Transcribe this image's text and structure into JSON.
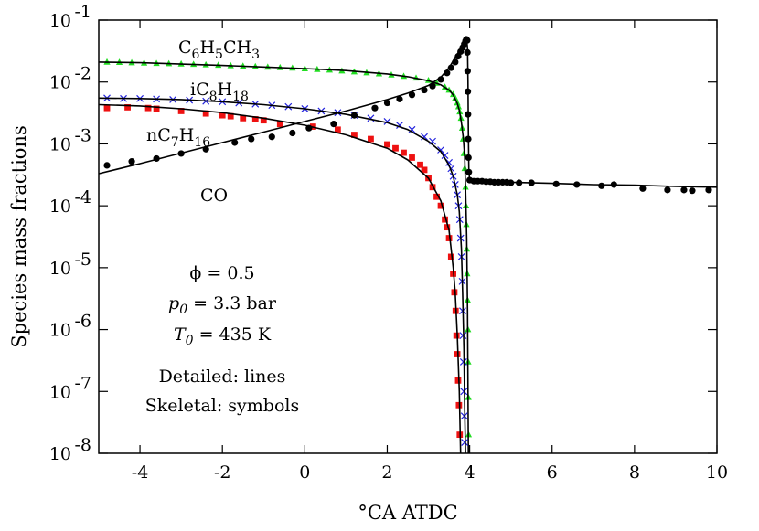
{
  "chart_data": {
    "type": "line",
    "xlabel": "°CA ATDC",
    "ylabel": "Species mass fractions",
    "xlim": [
      -5,
      10
    ],
    "ylim": [
      1e-08,
      0.1
    ],
    "y_scale": "log",
    "x_ticks": [
      "-4",
      "-2",
      "0",
      "2",
      "4",
      "6",
      "8",
      "10"
    ],
    "x_tick_values": [
      -4,
      -2,
      0,
      2,
      4,
      6,
      8,
      10
    ],
    "y_ticks": [
      {
        "value": 1e-08,
        "base": "10",
        "exp": "-8"
      },
      {
        "value": 1e-07,
        "base": "10",
        "exp": "-7"
      },
      {
        "value": 1e-06,
        "base": "10",
        "exp": "-6"
      },
      {
        "value": 1e-05,
        "base": "10",
        "exp": "-5"
      },
      {
        "value": 0.0001,
        "base": "10",
        "exp": "-4"
      },
      {
        "value": 0.001,
        "base": "10",
        "exp": "-3"
      },
      {
        "value": 0.01,
        "base": "10",
        "exp": "-2"
      },
      {
        "value": 0.1,
        "base": "10",
        "exp": "-1"
      }
    ],
    "grid": false,
    "series_labels": {
      "toluene": {
        "parts": [
          [
            "C",
            ""
          ],
          [
            "6",
            "sub"
          ],
          [
            "H",
            ""
          ],
          [
            "5",
            "sub"
          ],
          [
            "CH",
            ""
          ],
          [
            "3",
            "sub"
          ]
        ]
      },
      "isooctane": {
        "parts": [
          [
            "iC",
            ""
          ],
          [
            "8",
            "sub"
          ],
          [
            "H",
            ""
          ],
          [
            "18",
            "sub"
          ]
        ]
      },
      "heptane": {
        "parts": [
          [
            "nC",
            ""
          ],
          [
            "7",
            "sub"
          ],
          [
            "H",
            ""
          ],
          [
            "16",
            "sub"
          ]
        ]
      },
      "co": {
        "parts": [
          [
            "CO",
            ""
          ]
        ]
      }
    },
    "annotations": {
      "phi": "ϕ = 0.5",
      "p0_sym": "p",
      "p0_sub": "0",
      "p0_rest": " = 3.3 bar",
      "T0_sym": "T",
      "T0_sub": "0",
      "T0_rest": " = 435 K",
      "detailed": "Detailed: lines",
      "skeletal": "Skeletal: symbols"
    },
    "series": [
      {
        "key": "toluene",
        "color": "#000000",
        "marker_color": "#22dd22",
        "marker": "triangle",
        "line": [
          [
            -5,
            0.021
          ],
          [
            -4,
            0.0205
          ],
          [
            -3,
            0.0195
          ],
          [
            -2,
            0.0185
          ],
          [
            -1,
            0.0175
          ],
          [
            0,
            0.0165
          ],
          [
            1,
            0.0153
          ],
          [
            2,
            0.0135
          ],
          [
            2.5,
            0.0122
          ],
          [
            3,
            0.0105
          ],
          [
            3.3,
            0.009
          ],
          [
            3.5,
            0.0074
          ],
          [
            3.6,
            0.0062
          ],
          [
            3.7,
            0.0045
          ],
          [
            3.75,
            0.0035
          ],
          [
            3.8,
            0.0022
          ],
          [
            3.85,
            0.0012
          ],
          [
            3.88,
            0.0006
          ],
          [
            3.9,
            0.0002
          ],
          [
            3.93,
            3e-05
          ],
          [
            3.95,
            2e-06
          ],
          [
            3.97,
            1e-08
          ]
        ],
        "markers": [
          [
            -4.8,
            0.021
          ],
          [
            -4.5,
            0.0208
          ],
          [
            -4.2,
            0.0205
          ],
          [
            -3.9,
            0.0203
          ],
          [
            -3.6,
            0.02
          ],
          [
            -3.3,
            0.0198
          ],
          [
            -3.0,
            0.0196
          ],
          [
            -2.7,
            0.0193
          ],
          [
            -2.4,
            0.019
          ],
          [
            -2.1,
            0.0187
          ],
          [
            -1.8,
            0.0184
          ],
          [
            -1.5,
            0.0181
          ],
          [
            -1.2,
            0.0178
          ],
          [
            -0.9,
            0.0174
          ],
          [
            -0.6,
            0.0171
          ],
          [
            -0.3,
            0.0168
          ],
          [
            0,
            0.0164
          ],
          [
            0.3,
            0.016
          ],
          [
            0.6,
            0.0156
          ],
          [
            0.9,
            0.0151
          ],
          [
            1.2,
            0.0146
          ],
          [
            1.5,
            0.0141
          ],
          [
            1.8,
            0.0136
          ],
          [
            2.1,
            0.013
          ],
          [
            2.4,
            0.0124
          ],
          [
            2.7,
            0.0116
          ],
          [
            3.0,
            0.0106
          ],
          [
            3.2,
            0.0096
          ],
          [
            3.4,
            0.0083
          ],
          [
            3.5,
            0.0074
          ],
          [
            3.6,
            0.0063
          ],
          [
            3.65,
            0.0055
          ],
          [
            3.7,
            0.0046
          ],
          [
            3.73,
            0.004
          ],
          [
            3.76,
            0.0033
          ],
          [
            3.79,
            0.0026
          ],
          [
            3.82,
            0.0018
          ],
          [
            3.84,
            0.0012
          ],
          [
            3.86,
            0.0007
          ],
          [
            3.88,
            0.0004
          ],
          [
            3.9,
            0.0002
          ],
          [
            3.91,
            0.0001
          ],
          [
            3.92,
            5e-05
          ],
          [
            3.93,
            2e-05
          ],
          [
            3.94,
            8e-06
          ],
          [
            3.95,
            3e-06
          ],
          [
            3.96,
            1e-06
          ],
          [
            3.965,
            3e-07
          ],
          [
            3.97,
            8e-08
          ],
          [
            3.975,
            2e-08
          ]
        ]
      },
      {
        "key": "isooctane",
        "color": "#000000",
        "marker_color": "#2222dd",
        "marker": "cross",
        "line": [
          [
            -5,
            0.0055
          ],
          [
            -4,
            0.0054
          ],
          [
            -3,
            0.0052
          ],
          [
            -2,
            0.0048
          ],
          [
            -1,
            0.0043
          ],
          [
            0,
            0.0037
          ],
          [
            1,
            0.003
          ],
          [
            2,
            0.0022
          ],
          [
            2.5,
            0.0017
          ],
          [
            3,
            0.0011
          ],
          [
            3.3,
            0.00075
          ],
          [
            3.5,
            0.00045
          ],
          [
            3.6,
            0.0003
          ],
          [
            3.7,
            0.00015
          ],
          [
            3.75,
            8e-05
          ],
          [
            3.8,
            2e-05
          ],
          [
            3.83,
            4e-06
          ],
          [
            3.86,
            5e-07
          ],
          [
            3.88,
            5e-08
          ],
          [
            3.9,
            1e-08
          ]
        ],
        "markers": [
          [
            -4.8,
            0.0055
          ],
          [
            -4.4,
            0.0054
          ],
          [
            -4.0,
            0.0054
          ],
          [
            -3.6,
            0.0053
          ],
          [
            -3.2,
            0.0052
          ],
          [
            -2.8,
            0.0051
          ],
          [
            -2.4,
            0.0049
          ],
          [
            -2.0,
            0.0048
          ],
          [
            -1.6,
            0.0046
          ],
          [
            -1.2,
            0.0044
          ],
          [
            -0.8,
            0.0042
          ],
          [
            -0.4,
            0.004
          ],
          [
            0,
            0.0037
          ],
          [
            0.4,
            0.0034
          ],
          [
            0.8,
            0.0032
          ],
          [
            1.2,
            0.0029
          ],
          [
            1.6,
            0.0026
          ],
          [
            2.0,
            0.0023
          ],
          [
            2.3,
            0.002
          ],
          [
            2.6,
            0.0017
          ],
          [
            2.9,
            0.0013
          ],
          [
            3.1,
            0.0011
          ],
          [
            3.3,
            0.0008
          ],
          [
            3.4,
            0.00065
          ],
          [
            3.5,
            0.0005
          ],
          [
            3.55,
            0.0004
          ],
          [
            3.6,
            0.0003
          ],
          [
            3.65,
            0.00022
          ],
          [
            3.7,
            0.00015
          ],
          [
            3.73,
            0.0001
          ],
          [
            3.76,
            6e-05
          ],
          [
            3.78,
            3e-05
          ],
          [
            3.8,
            1.5e-05
          ],
          [
            3.82,
            6e-06
          ],
          [
            3.83,
            2e-06
          ],
          [
            3.84,
            8e-07
          ],
          [
            3.85,
            3e-07
          ],
          [
            3.86,
            1e-07
          ],
          [
            3.87,
            4e-08
          ],
          [
            3.88,
            1.5e-08
          ]
        ]
      },
      {
        "key": "heptane",
        "color": "#000000",
        "marker_color": "#ee1111",
        "marker": "square",
        "line": [
          [
            -5,
            0.0043
          ],
          [
            -4,
            0.0041
          ],
          [
            -3,
            0.0037
          ],
          [
            -2,
            0.0032
          ],
          [
            -1,
            0.0026
          ],
          [
            0,
            0.002
          ],
          [
            1,
            0.0014
          ],
          [
            2,
            0.00085
          ],
          [
            2.5,
            0.00055
          ],
          [
            3,
            0.00028
          ],
          [
            3.3,
            0.00012
          ],
          [
            3.5,
            4e-05
          ],
          [
            3.6,
            1e-05
          ],
          [
            3.65,
            4e-06
          ],
          [
            3.7,
            8e-07
          ],
          [
            3.75,
            1e-07
          ],
          [
            3.78,
            1e-08
          ]
        ],
        "markers": [
          [
            -4.8,
            0.0038
          ],
          [
            -4.3,
            0.0039
          ],
          [
            -3.8,
            0.0038
          ],
          [
            -3.6,
            0.0037
          ],
          [
            -3.0,
            0.0034
          ],
          [
            -2.4,
            0.0031
          ],
          [
            -2.0,
            0.0029
          ],
          [
            -1.8,
            0.0028
          ],
          [
            -1.5,
            0.0026
          ],
          [
            -1.2,
            0.0025
          ],
          [
            -1.0,
            0.0024
          ],
          [
            -0.6,
            0.0021
          ],
          [
            0.2,
            0.0019
          ],
          [
            0.8,
            0.0017
          ],
          [
            1.2,
            0.0014
          ],
          [
            1.6,
            0.0012
          ],
          [
            2.0,
            0.00098
          ],
          [
            2.2,
            0.00085
          ],
          [
            2.4,
            0.00072
          ],
          [
            2.6,
            0.0006
          ],
          [
            2.8,
            0.00046
          ],
          [
            2.9,
            0.00038
          ],
          [
            3.0,
            0.00028
          ],
          [
            3.1,
            0.0002
          ],
          [
            3.2,
            0.00014
          ],
          [
            3.3,
            0.0001
          ],
          [
            3.4,
            6e-05
          ],
          [
            3.45,
            4.5e-05
          ],
          [
            3.5,
            3e-05
          ],
          [
            3.55,
            1.5e-05
          ],
          [
            3.6,
            8e-06
          ],
          [
            3.63,
            4e-06
          ],
          [
            3.66,
            2e-06
          ],
          [
            3.68,
            8e-07
          ],
          [
            3.7,
            4e-07
          ],
          [
            3.72,
            1.5e-07
          ],
          [
            3.74,
            6e-08
          ],
          [
            3.76,
            2e-08
          ]
        ]
      },
      {
        "key": "co",
        "color": "#000000",
        "marker_color": "#000000",
        "marker": "circle",
        "line": [
          [
            -5,
            0.00033
          ],
          [
            -4,
            0.00048
          ],
          [
            -3,
            0.00071
          ],
          [
            -2,
            0.00105
          ],
          [
            -1,
            0.00155
          ],
          [
            0,
            0.0023
          ],
          [
            1,
            0.0034
          ],
          [
            2,
            0.0052
          ],
          [
            2.5,
            0.0066
          ],
          [
            3,
            0.0088
          ],
          [
            3.3,
            0.012
          ],
          [
            3.5,
            0.017
          ],
          [
            3.65,
            0.025
          ],
          [
            3.8,
            0.036
          ],
          [
            3.9,
            0.046
          ],
          [
            3.93,
            0.048
          ],
          [
            3.95,
            0.035
          ],
          [
            3.96,
            0.01
          ],
          [
            3.97,
            0.0016
          ],
          [
            3.98,
            0.0004
          ],
          [
            4.0,
            0.00025
          ],
          [
            5,
            0.00024
          ],
          [
            6,
            0.00023
          ],
          [
            7,
            0.00022
          ],
          [
            8,
            0.000215
          ],
          [
            9,
            0.000205
          ],
          [
            10,
            0.0002
          ]
        ],
        "markers": [
          [
            -4.8,
            0.00045
          ],
          [
            -4.2,
            0.00052
          ],
          [
            -3.6,
            0.00058
          ],
          [
            -3.0,
            0.0007
          ],
          [
            -2.4,
            0.00082
          ],
          [
            -1.7,
            0.00105
          ],
          [
            -1.3,
            0.0012
          ],
          [
            -0.8,
            0.0013
          ],
          [
            -0.3,
            0.0015
          ],
          [
            0.1,
            0.0018
          ],
          [
            0.7,
            0.0021
          ],
          [
            1.2,
            0.0029
          ],
          [
            1.7,
            0.0038
          ],
          [
            2.0,
            0.0046
          ],
          [
            2.3,
            0.0053
          ],
          [
            2.6,
            0.0062
          ],
          [
            2.9,
            0.0074
          ],
          [
            3.1,
            0.0086
          ],
          [
            3.3,
            0.011
          ],
          [
            3.45,
            0.014
          ],
          [
            3.55,
            0.017
          ],
          [
            3.65,
            0.021
          ],
          [
            3.72,
            0.026
          ],
          [
            3.78,
            0.031
          ],
          [
            3.83,
            0.036
          ],
          [
            3.87,
            0.041
          ],
          [
            3.9,
            0.046
          ],
          [
            3.92,
            0.049
          ],
          [
            3.94,
            0.047
          ],
          [
            3.945,
            0.03
          ],
          [
            3.95,
            0.015
          ],
          [
            3.955,
            0.007
          ],
          [
            3.96,
            0.003
          ],
          [
            3.965,
            0.0012
          ],
          [
            3.97,
            0.0006
          ],
          [
            3.98,
            0.00035
          ],
          [
            4.0,
            0.00026
          ],
          [
            4.1,
            0.00025
          ],
          [
            4.2,
            0.00025
          ],
          [
            4.3,
            0.00025
          ],
          [
            4.4,
            0.000245
          ],
          [
            4.5,
            0.000245
          ],
          [
            4.6,
            0.00024
          ],
          [
            4.7,
            0.00024
          ],
          [
            4.8,
            0.00024
          ],
          [
            4.9,
            0.00024
          ],
          [
            5.0,
            0.000235
          ],
          [
            5.2,
            0.000235
          ],
          [
            5.5,
            0.000235
          ],
          [
            6.1,
            0.000225
          ],
          [
            6.6,
            0.00022
          ],
          [
            7.2,
            0.00021
          ],
          [
            7.5,
            0.00022
          ],
          [
            8.2,
            0.00019
          ],
          [
            8.8,
            0.00018
          ],
          [
            9.2,
            0.00018
          ],
          [
            9.4,
            0.000175
          ],
          [
            9.8,
            0.00018
          ]
        ]
      }
    ]
  }
}
